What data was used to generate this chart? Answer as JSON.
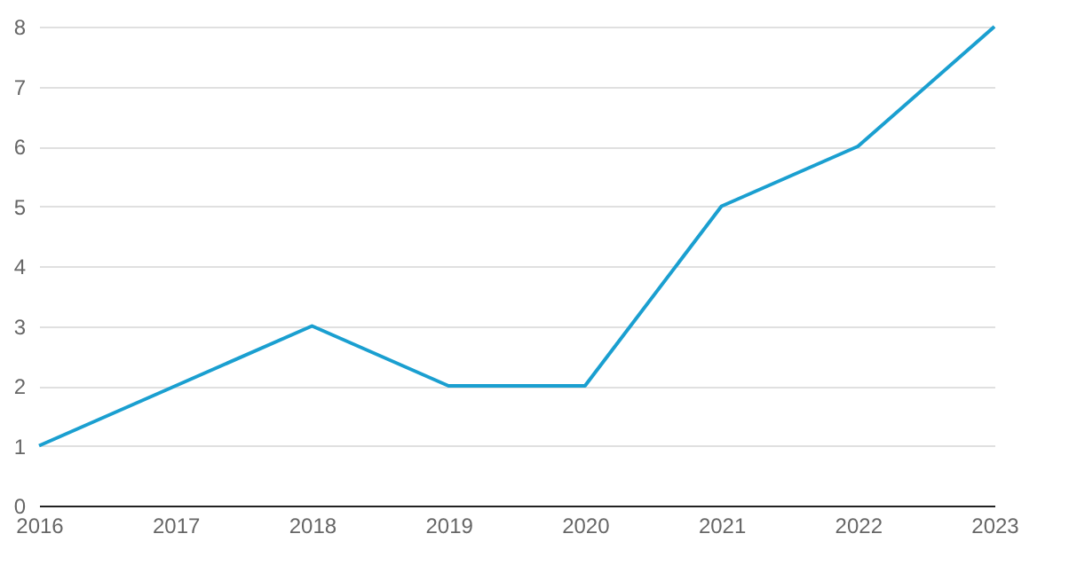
{
  "chart_data": {
    "type": "line",
    "categories": [
      "2016",
      "2017",
      "2018",
      "2019",
      "2020",
      "2021",
      "2022",
      "2023"
    ],
    "series": [
      {
        "color": "#1a9fd0",
        "values": [
          1,
          2,
          3,
          2,
          2,
          5,
          6,
          8
        ]
      }
    ],
    "ylim": [
      0,
      8
    ],
    "yticks": [
      0,
      1,
      2,
      3,
      4,
      5,
      6,
      7,
      8
    ],
    "grid": "y",
    "marker": "none",
    "line_style": "solid"
  }
}
